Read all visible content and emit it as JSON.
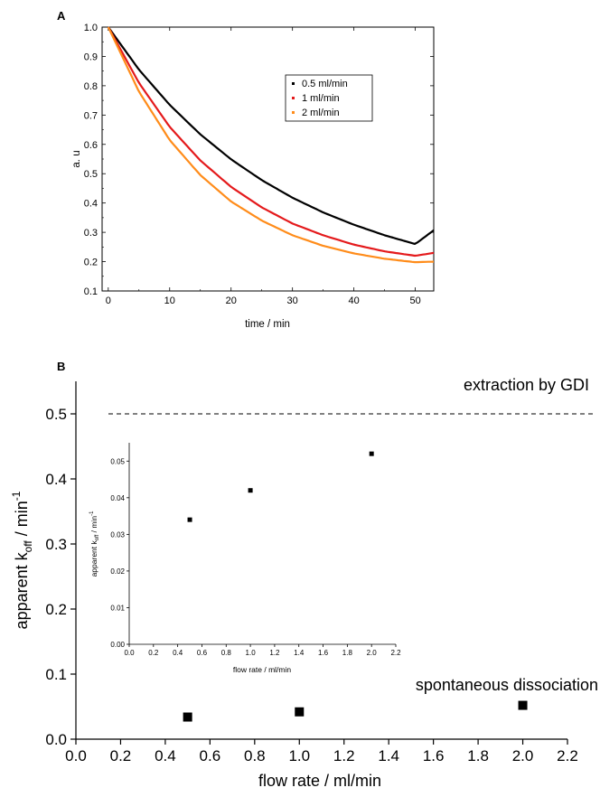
{
  "panels": {
    "a_label": "A",
    "b_label": "B"
  },
  "chart_data": [
    {
      "id": "A",
      "type": "line",
      "xlabel": "time / min",
      "ylabel": "a. u",
      "xlim": [
        -1,
        53
      ],
      "ylim": [
        0.1,
        1.0
      ],
      "xticks": [
        0,
        10,
        20,
        30,
        40,
        50
      ],
      "yticks": [
        0.1,
        0.2,
        0.3,
        0.4,
        0.5,
        0.6,
        0.7,
        0.8,
        0.9,
        1.0
      ],
      "legend_position": "top-right",
      "series": [
        {
          "name": "0.5 ml/min",
          "color": "#000000",
          "x": [
            0,
            5,
            10,
            15,
            20,
            25,
            30,
            35,
            40,
            45,
            50,
            53
          ],
          "values": [
            1.0,
            0.855,
            0.735,
            0.634,
            0.549,
            0.478,
            0.418,
            0.368,
            0.326,
            0.29,
            0.26,
            0.307
          ]
        },
        {
          "name": "1 ml/min",
          "color": "#e41a1c",
          "x": [
            0,
            5,
            10,
            15,
            20,
            25,
            30,
            35,
            40,
            45,
            50,
            53
          ],
          "values": [
            1.0,
            0.81,
            0.66,
            0.545,
            0.455,
            0.385,
            0.33,
            0.29,
            0.258,
            0.235,
            0.22,
            0.23
          ]
        },
        {
          "name": "2 ml/min",
          "color": "#ff8c1a",
          "x": [
            0,
            5,
            10,
            15,
            20,
            25,
            30,
            35,
            40,
            45,
            50,
            53
          ],
          "values": [
            1.0,
            0.78,
            0.615,
            0.495,
            0.405,
            0.34,
            0.29,
            0.254,
            0.228,
            0.21,
            0.198,
            0.2
          ]
        }
      ]
    },
    {
      "id": "B",
      "type": "scatter",
      "xlabel": "flow rate / ml/min",
      "ylabel_main": "apparent k",
      "ylabel_sub": "off",
      "ylabel_unit": " / min",
      "ylabel_sup": "-1",
      "xlim": [
        0.0,
        2.2
      ],
      "ylim": [
        0.0,
        0.55
      ],
      "xticks": [
        0.0,
        0.2,
        0.4,
        0.6,
        0.8,
        1.0,
        1.2,
        1.4,
        1.6,
        1.8,
        2.0,
        2.2
      ],
      "yticks": [
        0.0,
        0.1,
        0.2,
        0.3,
        0.4,
        0.5
      ],
      "x": [
        0.5,
        1.0,
        2.0
      ],
      "values": [
        0.034,
        0.042,
        0.052
      ],
      "reference_line": {
        "y": 0.5,
        "label": "extraction by GDI",
        "style": "dashed"
      },
      "annotations": [
        "spontaneous dissociation"
      ]
    },
    {
      "id": "B-inset",
      "type": "scatter",
      "xlabel": "flow rate / ml/min",
      "ylabel_main": "apparent k",
      "ylabel_sub": "off",
      "ylabel_unit": " / min",
      "ylabel_sup": "-1",
      "xlim": [
        0.0,
        2.2
      ],
      "ylim": [
        0.0,
        0.055
      ],
      "xticks": [
        0.0,
        0.2,
        0.4,
        0.6,
        0.8,
        1.0,
        1.2,
        1.4,
        1.6,
        1.8,
        2.0,
        2.2
      ],
      "yticks": [
        0.0,
        0.01,
        0.02,
        0.03,
        0.04,
        0.05
      ],
      "x": [
        0.5,
        1.0,
        2.0
      ],
      "values": [
        0.034,
        0.042,
        0.052
      ]
    }
  ]
}
